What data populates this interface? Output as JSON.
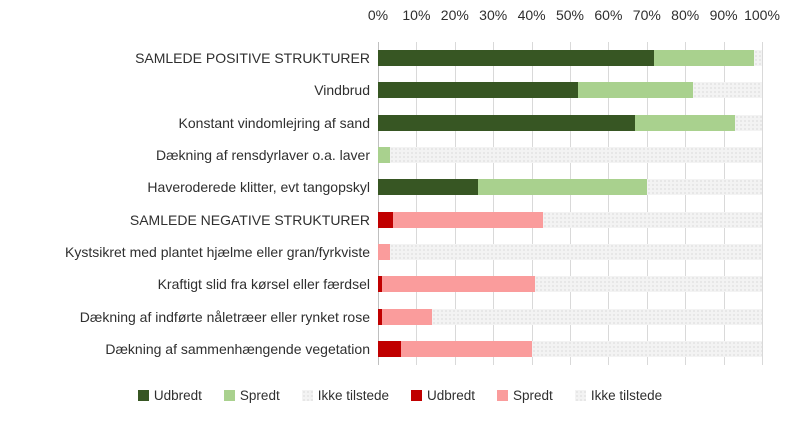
{
  "chart_data": {
    "type": "bar",
    "orientation": "horizontal",
    "stacked": true,
    "title": "",
    "xlabel": "",
    "ylabel": "",
    "xlim": [
      0,
      100
    ],
    "x_ticks": [
      "0%",
      "10%",
      "20%",
      "30%",
      "40%",
      "50%",
      "60%",
      "70%",
      "80%",
      "90%",
      "100%"
    ],
    "grid": true,
    "legend_position": "bottom",
    "categories": [
      "SAMLEDE POSITIVE STRUKTURER",
      "Vindbrud",
      "Konstant vindomlejring af sand",
      "Dækning af rensdyrlaver o.a. laver",
      "Haveroderede klitter, evt tangopskyl",
      "SAMLEDE NEGATIVE STRUKTURER",
      "Kystsikret med plantet hjælme eller gran/fyrkviste",
      "Kraftigt slid fra kørsel eller færdsel",
      "Dækning af indførte nåletræer eller rynket rose",
      "Dækning af sammenhængende vegetation"
    ],
    "series": [
      {
        "name": "Udbredt",
        "key": "udbredt-positiv",
        "color": "#375623",
        "pattern": false,
        "values": [
          72,
          52,
          67,
          0,
          26,
          0,
          0,
          0,
          0,
          0
        ]
      },
      {
        "name": "Spredt",
        "key": "spredt-positiv",
        "color": "#A9D18E",
        "pattern": false,
        "values": [
          26,
          30,
          26,
          3,
          44,
          0,
          0,
          0,
          0,
          0
        ]
      },
      {
        "name": "Ikke tilstede",
        "key": "ikke-tilstede-positiv",
        "color": "#F3F3F3",
        "pattern": true,
        "values": [
          2,
          18,
          7,
          97,
          30,
          0,
          0,
          0,
          0,
          0
        ]
      },
      {
        "name": "Udbredt",
        "key": "udbredt-negativ",
        "color": "#C00000",
        "pattern": false,
        "values": [
          0,
          0,
          0,
          0,
          0,
          4,
          0,
          1,
          1,
          6
        ]
      },
      {
        "name": "Spredt",
        "key": "spredt-negativ",
        "color": "#FA9C9C",
        "pattern": false,
        "values": [
          0,
          0,
          0,
          0,
          0,
          39,
          3,
          40,
          13,
          34
        ]
      },
      {
        "name": "Ikke tilstede",
        "key": "ikke-tilstede-negativ",
        "color": "#F3F3F3",
        "pattern": true,
        "values": [
          0,
          0,
          0,
          0,
          0,
          57,
          97,
          59,
          86,
          60
        ]
      }
    ]
  },
  "colors": {
    "gridline": "#D9D9D9",
    "axis_line": "#BFBFBF",
    "text": "#2F2F2F",
    "background": "#FFFFFF"
  }
}
